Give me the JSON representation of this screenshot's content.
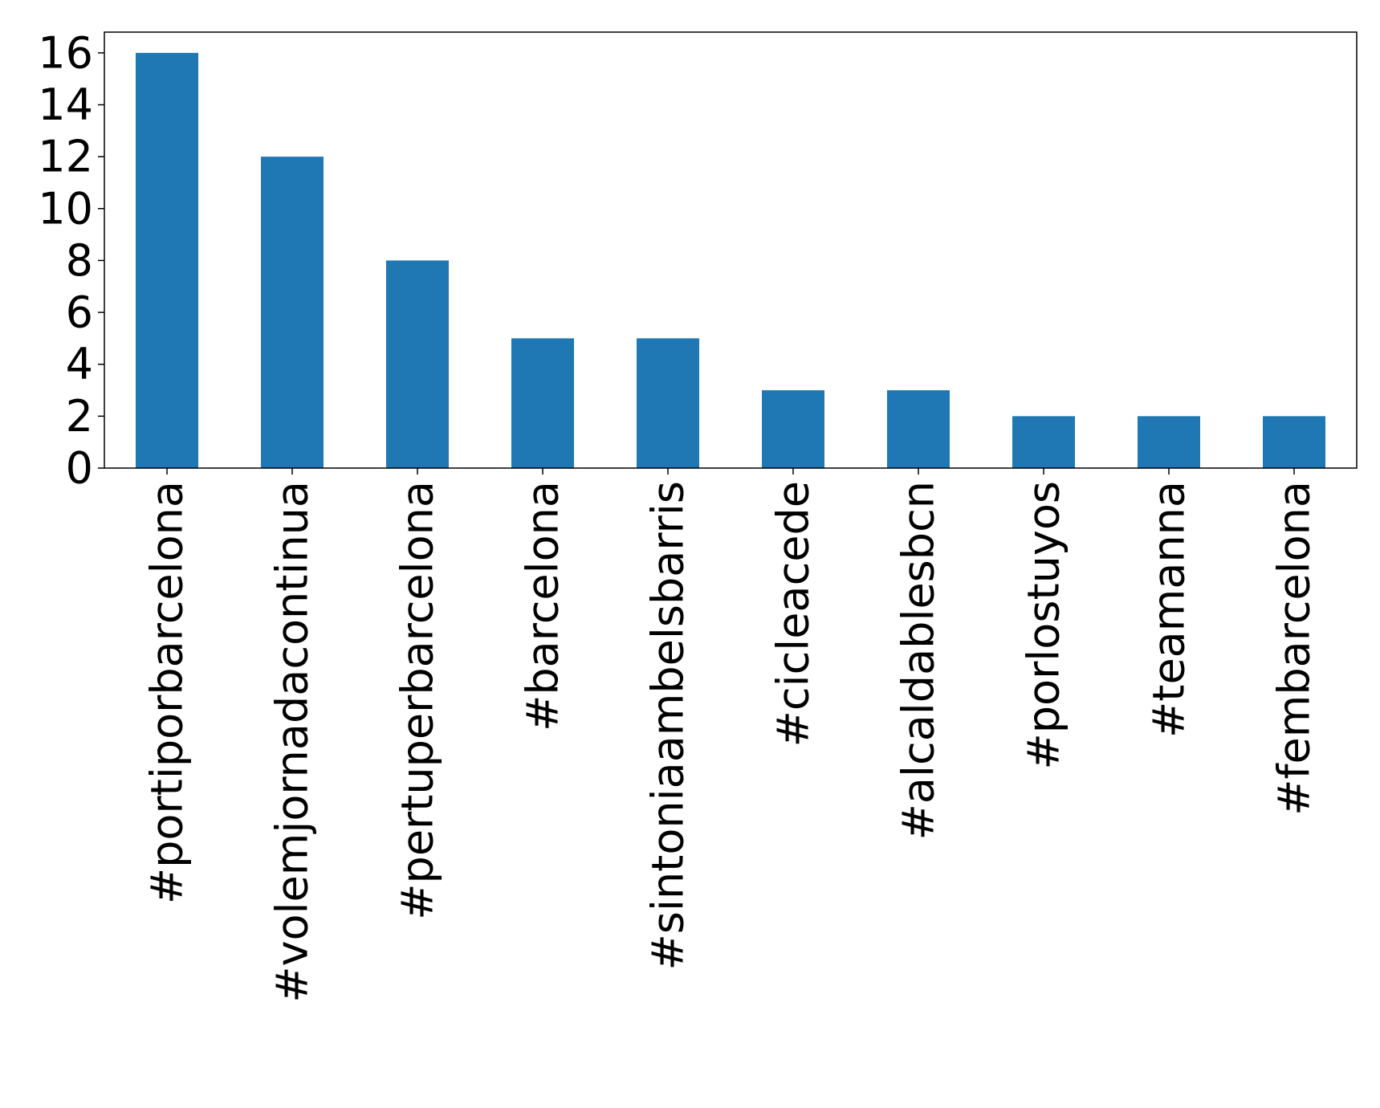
{
  "chart_data": {
    "type": "bar",
    "categories": [
      "#portiporbarcelona",
      "#volemjornadacontinua",
      "#pertuperbarcelona",
      "#barcelona",
      "#sintoniaambelsbarris",
      "#cicleacede",
      "#alcaldablesbcn",
      "#porlostuyos",
      "#teamanna",
      "#fembarcelona"
    ],
    "values": [
      16,
      12,
      8,
      5,
      5,
      3,
      3,
      2,
      2,
      2
    ],
    "ylim": [
      0,
      16.8
    ],
    "yticks": [
      0,
      2,
      4,
      6,
      8,
      10,
      12,
      14,
      16
    ],
    "bar_color": "#1f77b4",
    "grid": false,
    "legend": "none"
  }
}
